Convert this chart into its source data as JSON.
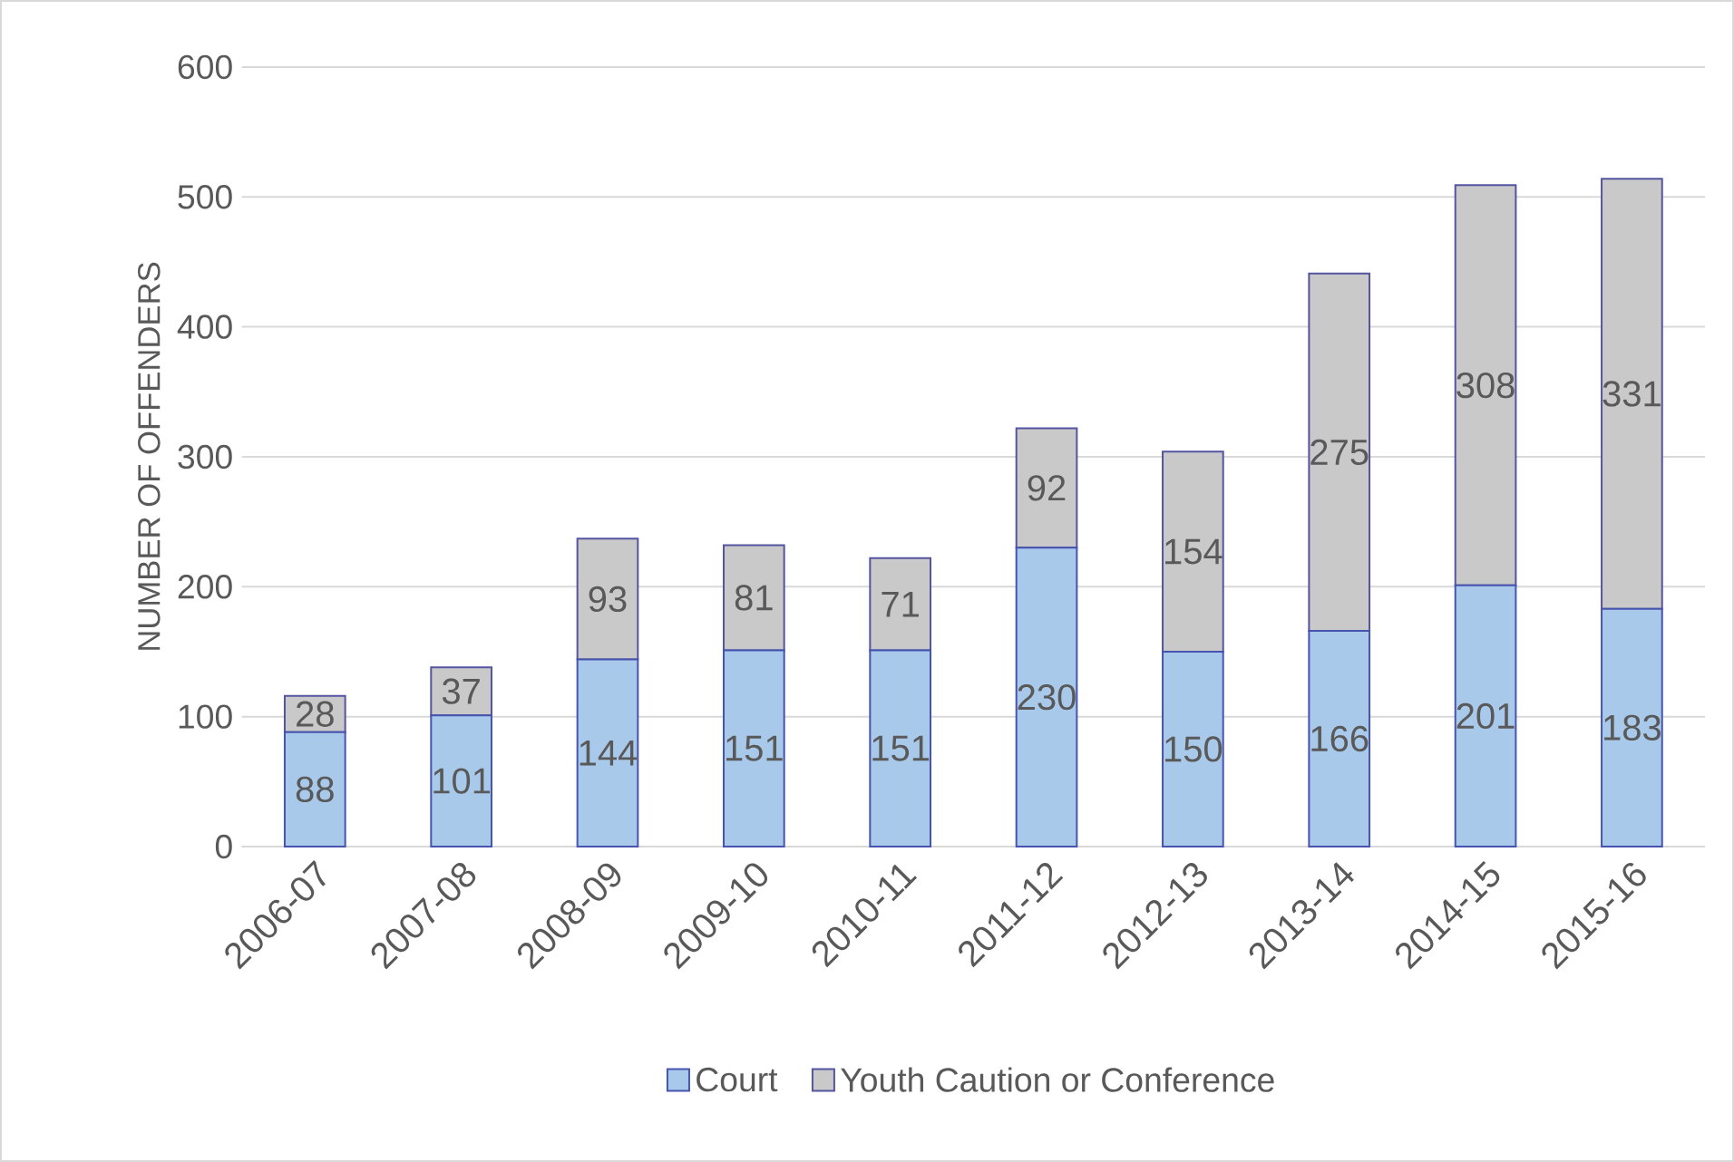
{
  "chart_data": {
    "type": "bar",
    "stacked": true,
    "ylabel": "NUMBER OF OFFENDERS",
    "categories": [
      "2006-07",
      "2007-08",
      "2008-09",
      "2009-10",
      "2010-11",
      "2011-12",
      "2012-13",
      "2013-14",
      "2014-15",
      "2015-16"
    ],
    "series": [
      {
        "name": "Court",
        "color": "#a9c9ea",
        "values": [
          88,
          101,
          144,
          151,
          151,
          230,
          150,
          166,
          201,
          183
        ]
      },
      {
        "name": "Youth Caution or Conference",
        "color": "#c9c9c9",
        "values": [
          28,
          37,
          93,
          81,
          71,
          92,
          154,
          275,
          308,
          331
        ]
      }
    ],
    "ylim": [
      0,
      600
    ],
    "yticks": [
      0,
      100,
      200,
      300,
      400,
      500,
      600
    ],
    "grid": "y",
    "legend": "bottom",
    "data_labels": true
  }
}
